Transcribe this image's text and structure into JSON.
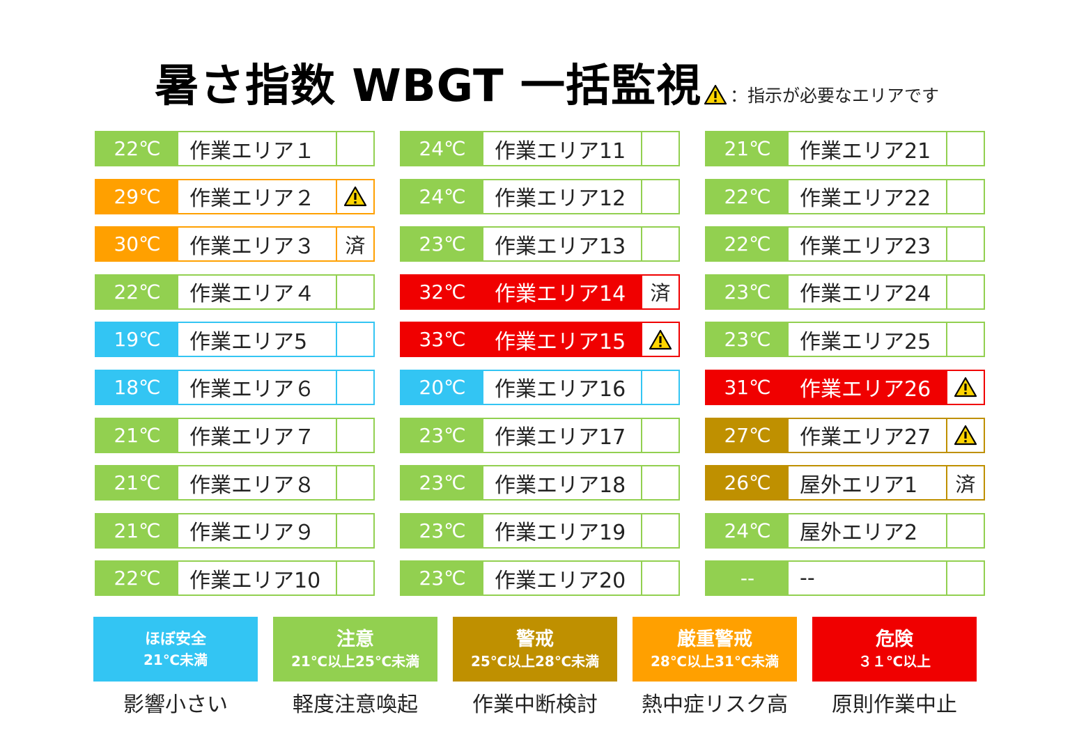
{
  "title": "暑さ指数 WBGT 一括監視",
  "note": "：指示が必要なエリアです",
  "colors": {
    "safe": "#33c5f3",
    "caution": "#92d050",
    "warning": "#bf9000",
    "severe": "#ffa000",
    "danger": "#f00000"
  },
  "areas": [
    {
      "temp": "22℃",
      "name": "作業エリア１",
      "level": "caution",
      "status": ""
    },
    {
      "temp": "29℃",
      "name": "作業エリア２",
      "level": "severe",
      "status": "warning-icon"
    },
    {
      "temp": "30℃",
      "name": "作業エリア３",
      "level": "severe",
      "status": "済"
    },
    {
      "temp": "22℃",
      "name": "作業エリア４",
      "level": "caution",
      "status": ""
    },
    {
      "temp": "19℃",
      "name": "作業エリア5",
      "level": "safe",
      "status": ""
    },
    {
      "temp": "18℃",
      "name": "作業エリア６",
      "level": "safe",
      "status": ""
    },
    {
      "temp": "21℃",
      "name": "作業エリア７",
      "level": "caution",
      "status": ""
    },
    {
      "temp": "21℃",
      "name": "作業エリア８",
      "level": "caution",
      "status": ""
    },
    {
      "temp": "21℃",
      "name": "作業エリア９",
      "level": "caution",
      "status": ""
    },
    {
      "temp": "22℃",
      "name": "作業エリア10",
      "level": "caution",
      "status": ""
    },
    {
      "temp": "24℃",
      "name": "作業エリア11",
      "level": "caution",
      "status": ""
    },
    {
      "temp": "24℃",
      "name": "作業エリア12",
      "level": "caution",
      "status": ""
    },
    {
      "temp": "23℃",
      "name": "作業エリア13",
      "level": "caution",
      "status": ""
    },
    {
      "temp": "32℃",
      "name": "作業エリア14",
      "level": "danger",
      "status": "済"
    },
    {
      "temp": "33℃",
      "name": "作業エリア15",
      "level": "danger",
      "status": "warning-icon"
    },
    {
      "temp": "20℃",
      "name": "作業エリア16",
      "level": "safe",
      "status": ""
    },
    {
      "temp": "23℃",
      "name": "作業エリア17",
      "level": "caution",
      "status": ""
    },
    {
      "temp": "23℃",
      "name": "作業エリア18",
      "level": "caution",
      "status": ""
    },
    {
      "temp": "23℃",
      "name": "作業エリア19",
      "level": "caution",
      "status": ""
    },
    {
      "temp": "23℃",
      "name": "作業エリア20",
      "level": "caution",
      "status": ""
    },
    {
      "temp": "21℃",
      "name": "作業エリア21",
      "level": "caution",
      "status": ""
    },
    {
      "temp": "22℃",
      "name": "作業エリア22",
      "level": "caution",
      "status": ""
    },
    {
      "temp": "22℃",
      "name": "作業エリア23",
      "level": "caution",
      "status": ""
    },
    {
      "temp": "23℃",
      "name": "作業エリア24",
      "level": "caution",
      "status": ""
    },
    {
      "temp": "23℃",
      "name": "作業エリア25",
      "level": "caution",
      "status": ""
    },
    {
      "temp": "31℃",
      "name": "作業エリア26",
      "level": "danger",
      "status": "warning-icon"
    },
    {
      "temp": "27℃",
      "name": "作業エリア27",
      "level": "warning",
      "status": "warning-icon"
    },
    {
      "temp": "26℃",
      "name": "屋外エリア1",
      "level": "warning",
      "status": "済"
    },
    {
      "temp": "24℃",
      "name": "屋外エリア2",
      "level": "caution",
      "status": ""
    },
    {
      "temp": "--",
      "name": "--",
      "level": "caution",
      "status": ""
    }
  ],
  "legend": [
    {
      "level": "safe",
      "label": "ほぼ安全",
      "range": "21℃未満",
      "desc": "影響小さい"
    },
    {
      "level": "caution",
      "label": "注意",
      "range": "21℃以上25℃未満",
      "desc": "軽度注意喚起"
    },
    {
      "level": "warning",
      "label": "警戒",
      "range": "25℃以上28℃未満",
      "desc": "作業中断検討"
    },
    {
      "level": "severe",
      "label": "厳重警戒",
      "range": "28℃以上31℃未満",
      "desc": "熱中症リスク高"
    },
    {
      "level": "danger",
      "label": "危険",
      "range": "３１℃以上",
      "desc": "原則作業中止"
    }
  ]
}
